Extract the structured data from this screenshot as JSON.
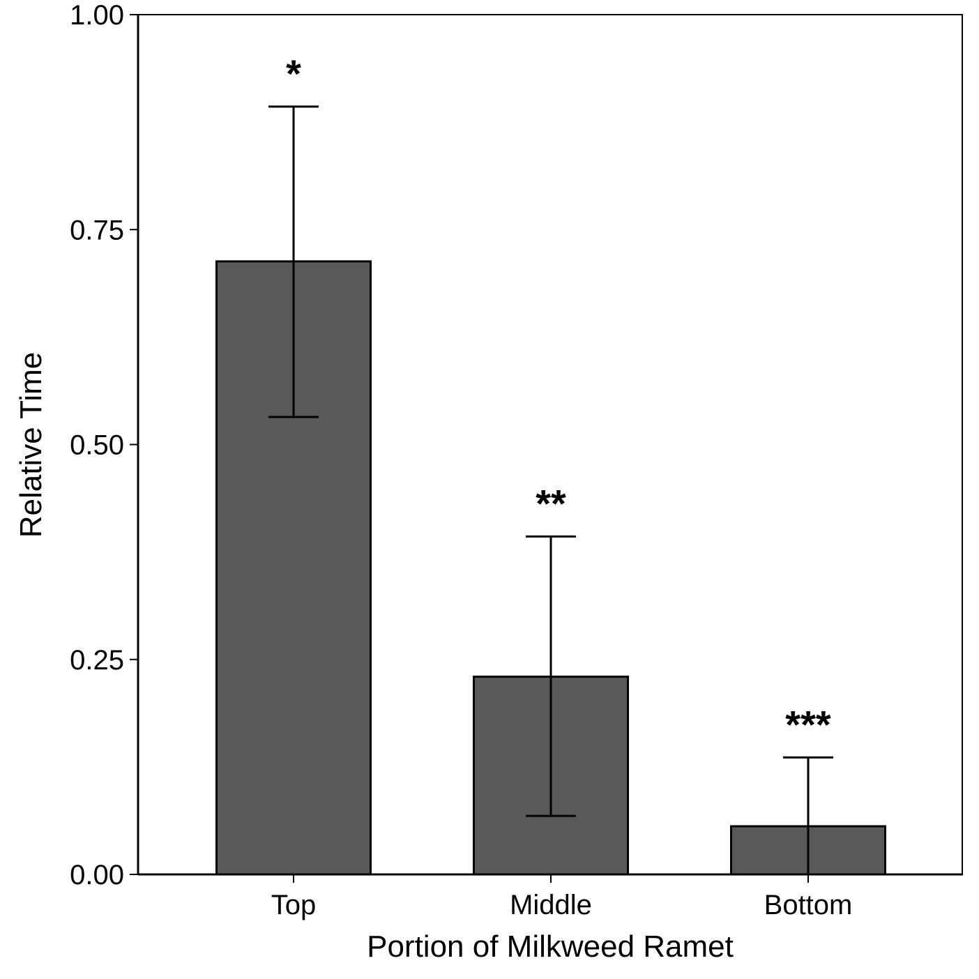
{
  "chart_data": {
    "type": "bar",
    "title": "",
    "xlabel": "Portion of Milkweed Ramet",
    "ylabel": "Relative Time",
    "categories": [
      "Top",
      "Middle",
      "Bottom"
    ],
    "values": [
      0.713,
      0.23,
      0.056
    ],
    "error_upper": [
      0.893,
      0.393,
      0.136
    ],
    "error_lower": [
      0.532,
      0.068,
      0.0
    ],
    "annotations": [
      "*",
      "**",
      "***"
    ],
    "ylim": [
      0,
      1
    ],
    "yticks": [
      0.0,
      0.25,
      0.5,
      0.75,
      1.0
    ],
    "ytick_labels": [
      "0.00",
      "0.25",
      "0.50",
      "0.75",
      "1.00"
    ],
    "grid": false,
    "bar_color": "#595959",
    "bar_outline_color": "#000000"
  }
}
